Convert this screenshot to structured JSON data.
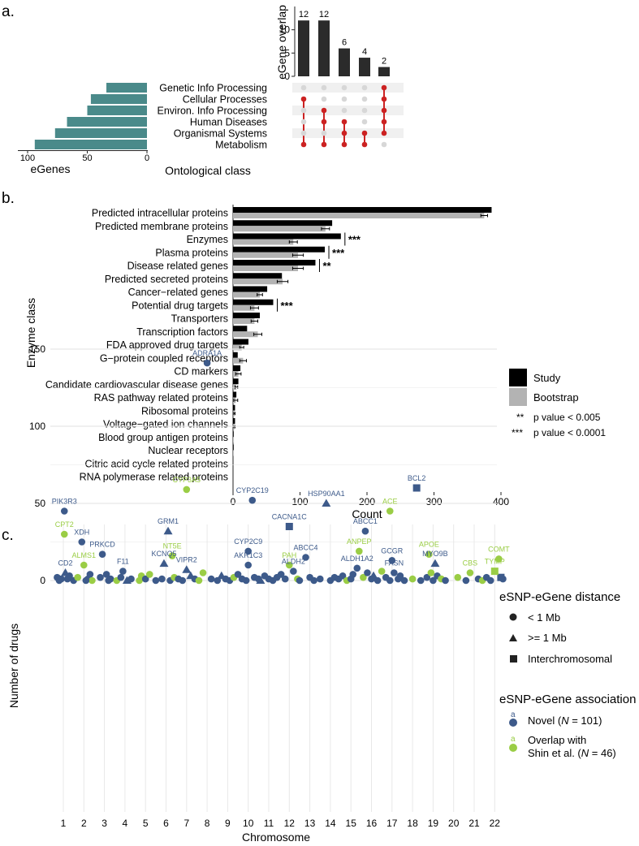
{
  "colors": {
    "teal": "#4a8a8a",
    "dark": "#2b2b2b",
    "red": "#cc2222",
    "study": "#000000",
    "bootstrap": "#b3b3b3",
    "novel": "#3d5a8a",
    "overlap": "#9acd45",
    "gridLight": "#e8e8e8",
    "dotGrey": "#d7d7d7",
    "stripe": "#f0f0f0"
  },
  "panel_labels": {
    "a": "a.",
    "b": "b.",
    "c": "c."
  },
  "chart_data": [
    {
      "id": "a_upset_bars",
      "type": "bar",
      "ylabel": "eGene overlap",
      "ylim": [
        0,
        15
      ],
      "yticks": [
        0,
        5,
        10
      ],
      "values": [
        12,
        12,
        6,
        4,
        2
      ],
      "labels": [
        "12",
        "12",
        "6",
        "4",
        "2"
      ]
    },
    {
      "id": "a_setsize_bars",
      "type": "bar",
      "xlabel": "eGenes",
      "xlim": [
        0,
        100
      ],
      "xticks": [
        100,
        50,
        0
      ],
      "categories": [
        "Genetic Info Processing",
        "Cellular Processes",
        "Environ. Info Processing",
        "Human Diseases",
        "Organismal Systems",
        "Metabolism"
      ],
      "values": [
        34,
        47,
        50,
        67,
        77,
        94
      ],
      "matrix_title": "Ontological class",
      "matrix": [
        [
          5
        ],
        [
          1,
          5
        ],
        [
          2,
          5
        ],
        [
          2,
          3,
          5
        ],
        [
          3,
          4,
          5
        ],
        [
          1,
          2,
          3,
          4
        ]
      ]
    },
    {
      "id": "b_enzyme_class",
      "type": "bar",
      "ylabel": "Enzyme class",
      "xlabel": "Count",
      "xlim": [
        0,
        400
      ],
      "xticks": [
        0,
        100,
        200,
        300,
        400
      ],
      "categories": [
        "Predicted intracellular proteins",
        "Predicted membrane proteins",
        "Enzymes",
        "Plasma proteins",
        "Disease related genes",
        "Predicted secreted proteins",
        "Cancer−related genes",
        "Potential drug targets",
        "Transporters",
        "Transcription factors",
        "FDA approved drug targets",
        "G−protein coupled receptors",
        "CD markers",
        "Candidate cardiovascular disease genes",
        "RAS pathway related proteins",
        "Ribosomal proteins",
        "Voltage−gated ion channels",
        "Blood group antigen proteins",
        "Nuclear receptors",
        "Citric acid cycle related proteins",
        "RNA polymerase related proteins"
      ],
      "series": [
        {
          "name": "Study",
          "values": [
            386,
            148,
            161,
            137,
            123,
            73,
            51,
            60,
            40,
            21,
            23,
            7,
            11,
            8,
            5,
            3,
            3,
            1,
            1,
            0,
            0
          ]
        },
        {
          "name": "Bootstrap",
          "values": [
            375,
            138,
            90,
            97,
            97,
            74,
            40,
            32,
            32,
            37,
            13,
            15,
            8,
            5,
            4,
            2,
            2,
            1,
            1,
            0,
            0
          ],
          "errors": [
            5,
            6,
            6,
            8,
            8,
            8,
            4,
            6,
            5,
            6,
            3,
            5,
            4,
            2,
            3,
            1,
            1,
            0,
            0,
            0,
            0
          ]
        }
      ],
      "significance": [
        {
          "category": "Enzymes",
          "label": "***"
        },
        {
          "category": "Plasma proteins",
          "label": "***"
        },
        {
          "category": "Disease related genes",
          "label": "**"
        },
        {
          "category": "Potential drug targets",
          "label": "***"
        }
      ],
      "legend": {
        "study": "Study",
        "bootstrap": "Bootstrap",
        "sig2_symbol": "**",
        "sig2_text": "p value < 0.005",
        "sig3_symbol": "***",
        "sig3_text": "p value < 0.0001"
      }
    },
    {
      "id": "c_drugs",
      "type": "scatter",
      "xlabel": "Chromosome",
      "ylabel": "Number of drugs",
      "ylim": [
        0,
        155
      ],
      "yticks": [
        0,
        50,
        100,
        150
      ],
      "xticks": [
        "1",
        "2",
        "3",
        "4",
        "5",
        "6",
        "7",
        "8",
        "9",
        "10",
        "11",
        "12",
        "13",
        "14",
        "15",
        "16",
        "17",
        "18",
        "19",
        "20",
        "21",
        "22"
      ],
      "labeled_points": [
        {
          "x": 1.05,
          "y": 45,
          "label": "PIK3R3",
          "shape": "circle",
          "assoc": "novel"
        },
        {
          "x": 1.05,
          "y": 30,
          "label": "CPT2",
          "shape": "circle",
          "assoc": "overlap"
        },
        {
          "x": 1.1,
          "y": 5,
          "label": "CD2",
          "shape": "triangle",
          "assoc": "novel"
        },
        {
          "x": 1.9,
          "y": 25,
          "label": "XDH",
          "shape": "circle",
          "assoc": "novel"
        },
        {
          "x": 2.0,
          "y": 10,
          "label": "ALMS1",
          "shape": "circle",
          "assoc": "overlap"
        },
        {
          "x": 2.9,
          "y": 17,
          "label": "PRKCD",
          "shape": "circle",
          "assoc": "novel"
        },
        {
          "x": 3.9,
          "y": 6,
          "label": "F11",
          "shape": "circle",
          "assoc": "novel"
        },
        {
          "x": 6.1,
          "y": 32,
          "label": "GRM1",
          "shape": "triangle",
          "assoc": "novel"
        },
        {
          "x": 6.3,
          "y": 16,
          "label": "NT5E",
          "shape": "circle",
          "assoc": "overlap"
        },
        {
          "x": 5.9,
          "y": 11,
          "label": "KCNQ5",
          "shape": "triangle",
          "assoc": "novel"
        },
        {
          "x": 7.0,
          "y": 59,
          "label": "CYP3A5",
          "shape": "circle",
          "assoc": "overlap"
        },
        {
          "x": 7.0,
          "y": 7,
          "label": "VIPR2",
          "shape": "triangle",
          "assoc": "novel"
        },
        {
          "x": 8.0,
          "y": 141,
          "label": "ADRA1A",
          "shape": "circle",
          "assoc": "novel"
        },
        {
          "x": 10.2,
          "y": 52,
          "label": "CYP2C19",
          "shape": "circle",
          "assoc": "novel"
        },
        {
          "x": 10.0,
          "y": 19,
          "label": "CYP2C9",
          "shape": "circle",
          "assoc": "novel"
        },
        {
          "x": 10.0,
          "y": 10,
          "label": "AKR1C3",
          "shape": "circle",
          "assoc": "novel"
        },
        {
          "x": 12.0,
          "y": 35,
          "label": "CACNA1C",
          "shape": "square",
          "assoc": "novel"
        },
        {
          "x": 12.0,
          "y": 10,
          "label": "PAH",
          "shape": "circle",
          "assoc": "overlap"
        },
        {
          "x": 12.2,
          "y": 6,
          "label": "ALDH2",
          "shape": "circle",
          "assoc": "novel"
        },
        {
          "x": 12.8,
          "y": 15,
          "label": "ABCC4",
          "shape": "circle",
          "assoc": "novel"
        },
        {
          "x": 13.8,
          "y": 50,
          "label": "HSP90AA1",
          "shape": "triangle",
          "assoc": "novel"
        },
        {
          "x": 15.4,
          "y": 19,
          "label": "ANPEP",
          "shape": "circle",
          "assoc": "overlap"
        },
        {
          "x": 15.3,
          "y": 8,
          "label": "ALDH1A2",
          "shape": "circle",
          "assoc": "novel"
        },
        {
          "x": 15.7,
          "y": 32,
          "label": "ABCC1",
          "shape": "circle",
          "assoc": "novel"
        },
        {
          "x": 16.9,
          "y": 45,
          "label": "ACE",
          "shape": "circle",
          "assoc": "overlap"
        },
        {
          "x": 17.0,
          "y": 13,
          "label": "GCGR",
          "shape": "circle",
          "assoc": "novel"
        },
        {
          "x": 17.1,
          "y": 5,
          "label": "FASN",
          "shape": "circle",
          "assoc": "novel"
        },
        {
          "x": 18.2,
          "y": 60,
          "label": "BCL2",
          "shape": "square",
          "assoc": "novel"
        },
        {
          "x": 18.8,
          "y": 17,
          "label": "APOE",
          "shape": "circle",
          "assoc": "overlap"
        },
        {
          "x": 19.1,
          "y": 11,
          "label": "MYO9B",
          "shape": "triangle",
          "assoc": "novel"
        },
        {
          "x": 20.8,
          "y": 5,
          "label": "CBS",
          "shape": "circle",
          "assoc": "overlap"
        },
        {
          "x": 22.2,
          "y": 14,
          "label": "COMT",
          "shape": "circle",
          "assoc": "overlap"
        },
        {
          "x": 22.0,
          "y": 6,
          "label": "TYMP",
          "shape": "square",
          "assoc": "overlap"
        }
      ],
      "points": [
        [
          0.7,
          2,
          "c",
          "n"
        ],
        [
          0.9,
          1,
          "c",
          "n"
        ],
        [
          1.2,
          1,
          "c",
          "n"
        ],
        [
          1.3,
          3,
          "c",
          "n"
        ],
        [
          1.5,
          0,
          "c",
          "n"
        ],
        [
          1.7,
          2,
          "c",
          "o"
        ],
        [
          2.2,
          1,
          "c",
          "n"
        ],
        [
          2.3,
          4,
          "c",
          "n"
        ],
        [
          2.4,
          0,
          "c",
          "o"
        ],
        [
          2.1,
          0,
          "c",
          "n"
        ],
        [
          2.8,
          2,
          "c",
          "n"
        ],
        [
          3.1,
          4,
          "c",
          "n"
        ],
        [
          3.2,
          0,
          "c",
          "n"
        ],
        [
          3.3,
          1,
          "c",
          "n"
        ],
        [
          3.6,
          0,
          "c",
          "o"
        ],
        [
          3.8,
          2,
          "c",
          "n"
        ],
        [
          4.1,
          0,
          "t",
          "n"
        ],
        [
          4.3,
          1,
          "c",
          "n"
        ],
        [
          4.7,
          0,
          "c",
          "o"
        ],
        [
          4.8,
          3,
          "c",
          "o"
        ],
        [
          5.0,
          1,
          "c",
          "n"
        ],
        [
          5.2,
          4,
          "c",
          "o"
        ],
        [
          5.5,
          0,
          "c",
          "n"
        ],
        [
          5.8,
          1,
          "c",
          "n"
        ],
        [
          6.2,
          0,
          "c",
          "n"
        ],
        [
          6.4,
          2,
          "c",
          "o"
        ],
        [
          6.6,
          1,
          "c",
          "n"
        ],
        [
          6.8,
          0,
          "c",
          "n"
        ],
        [
          7.2,
          3,
          "t",
          "n"
        ],
        [
          7.4,
          1,
          "c",
          "n"
        ],
        [
          7.6,
          0,
          "c",
          "o"
        ],
        [
          7.8,
          5,
          "c",
          "o"
        ],
        [
          8.2,
          1,
          "c",
          "n"
        ],
        [
          8.5,
          0,
          "c",
          "n"
        ],
        [
          8.7,
          3,
          "t",
          "n"
        ],
        [
          8.9,
          1,
          "c",
          "n"
        ],
        [
          9.1,
          0,
          "c",
          "n"
        ],
        [
          9.3,
          2,
          "c",
          "o"
        ],
        [
          9.5,
          4,
          "c",
          "n"
        ],
        [
          9.7,
          1,
          "c",
          "n"
        ],
        [
          9.9,
          0,
          "c",
          "n"
        ],
        [
          10.3,
          2,
          "c",
          "n"
        ],
        [
          10.5,
          1,
          "c",
          "n"
        ],
        [
          10.6,
          0,
          "t",
          "n"
        ],
        [
          10.8,
          3,
          "c",
          "n"
        ],
        [
          11.0,
          1,
          "c",
          "n"
        ],
        [
          11.2,
          0,
          "c",
          "n"
        ],
        [
          11.4,
          2,
          "c",
          "n"
        ],
        [
          11.6,
          4,
          "c",
          "n"
        ],
        [
          11.8,
          1,
          "c",
          "n"
        ],
        [
          12.4,
          1,
          "c",
          "o"
        ],
        [
          12.5,
          0,
          "c",
          "n"
        ],
        [
          13.0,
          2,
          "c",
          "n"
        ],
        [
          13.2,
          0,
          "c",
          "n"
        ],
        [
          13.5,
          1,
          "c",
          "n"
        ],
        [
          14.0,
          0,
          "c",
          "n"
        ],
        [
          14.2,
          2,
          "c",
          "n"
        ],
        [
          14.4,
          1,
          "c",
          "n"
        ],
        [
          14.6,
          3,
          "c",
          "n"
        ],
        [
          14.8,
          0,
          "c",
          "o"
        ],
        [
          15.0,
          1,
          "c",
          "n"
        ],
        [
          15.1,
          4,
          "c",
          "n"
        ],
        [
          15.6,
          2,
          "c",
          "o"
        ],
        [
          15.8,
          5,
          "c",
          "n"
        ],
        [
          16.0,
          1,
          "c",
          "n"
        ],
        [
          16.1,
          3,
          "t",
          "n"
        ],
        [
          16.3,
          0,
          "c",
          "n"
        ],
        [
          16.5,
          6,
          "c",
          "o"
        ],
        [
          16.7,
          2,
          "c",
          "n"
        ],
        [
          16.9,
          0,
          "c",
          "n"
        ],
        [
          17.3,
          1,
          "c",
          "n"
        ],
        [
          17.4,
          3,
          "c",
          "n"
        ],
        [
          17.6,
          0,
          "c",
          "n"
        ],
        [
          18.0,
          1,
          "c",
          "o"
        ],
        [
          18.4,
          0,
          "c",
          "n"
        ],
        [
          18.7,
          2,
          "c",
          "n"
        ],
        [
          18.9,
          5,
          "c",
          "o"
        ],
        [
          19.0,
          0,
          "c",
          "n"
        ],
        [
          19.2,
          3,
          "c",
          "n"
        ],
        [
          19.4,
          1,
          "c",
          "o"
        ],
        [
          19.6,
          0,
          "c",
          "n"
        ],
        [
          20.2,
          2,
          "c",
          "o"
        ],
        [
          20.6,
          0,
          "c",
          "n"
        ],
        [
          21.2,
          1,
          "c",
          "n"
        ],
        [
          21.4,
          0,
          "c",
          "o"
        ],
        [
          21.6,
          2,
          "c",
          "n"
        ],
        [
          21.8,
          0,
          "c",
          "n"
        ],
        [
          22.4,
          1,
          "c",
          "n"
        ],
        [
          22.3,
          2,
          "s",
          "n"
        ],
        [
          0.8,
          0,
          "c",
          "n"
        ]
      ],
      "legend": {
        "distance_title": "eSNP-eGene distance",
        "lt1": "< 1 Mb",
        "ge1": ">= 1 Mb",
        "inter": "Interchromosomal",
        "assoc_title": "eSNP-eGene association",
        "key_glyph": "a",
        "novel_prefix": "Novel (",
        "novel_n": "N",
        "novel_suffix": " = 101)",
        "overlap_line1": "Overlap with",
        "overlap_prefix": "Shin et al. (",
        "overlap_n": "N",
        "overlap_suffix": " = 46)"
      }
    }
  ]
}
